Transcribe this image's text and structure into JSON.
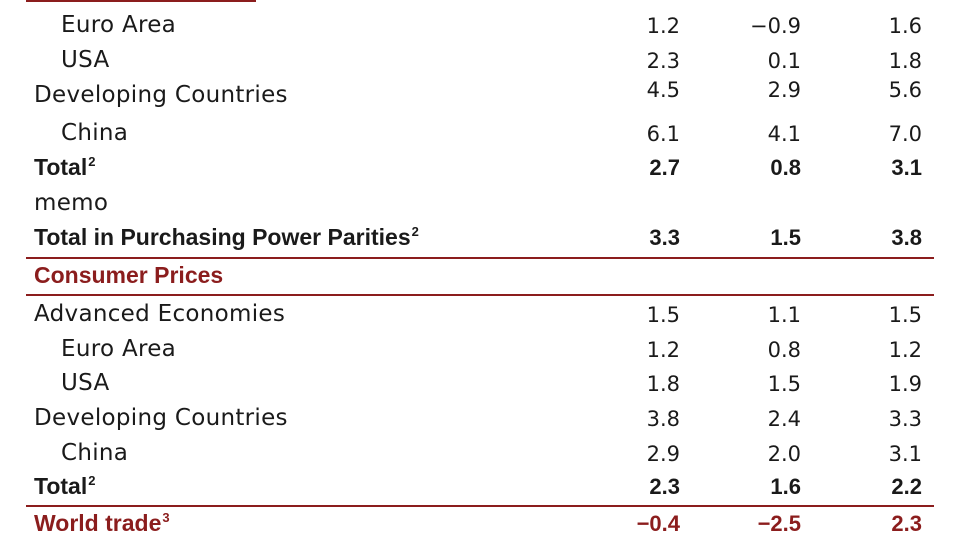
{
  "rows": [
    {
      "label": "Euro Area",
      "indent": true,
      "values": [
        "1.2",
        "-0.9",
        "1.6"
      ]
    },
    {
      "label": "USA",
      "indent": true,
      "values": [
        "2.3",
        "0.1",
        "1.8"
      ]
    },
    {
      "label": "Developing Countries",
      "values": [
        "4.5",
        "2.9",
        "5.6"
      ]
    },
    {
      "label": "China",
      "indent": true,
      "values": [
        "6.1",
        "4.1",
        "7.0"
      ]
    },
    {
      "label": "Total",
      "sup": "2",
      "bold": true,
      "values": [
        "2.7",
        "0.8",
        "3.1"
      ]
    },
    {
      "label": "memo",
      "values": [
        "",
        "",
        ""
      ]
    },
    {
      "label": "Total in Purchasing Power Parities",
      "sup": "2",
      "bold": true,
      "values": [
        "3.3",
        "1.5",
        "3.8"
      ]
    },
    {
      "label": "Consumer Prices",
      "bold": true,
      "red": true,
      "section": true,
      "values": [
        "",
        "",
        ""
      ]
    },
    {
      "label": "Advanced Economies",
      "values": [
        "1.5",
        "1.1",
        "1.5"
      ]
    },
    {
      "label": "Euro Area",
      "indent": true,
      "values": [
        "1.2",
        "0.8",
        "1.2"
      ]
    },
    {
      "label": "USA",
      "indent": true,
      "values": [
        "1.8",
        "1.5",
        "1.9"
      ]
    },
    {
      "label": "Developing Countries",
      "values": [
        "3.8",
        "2.4",
        "3.3"
      ]
    },
    {
      "label": "China",
      "indent": true,
      "values": [
        "2.9",
        "2.0",
        "3.1"
      ]
    },
    {
      "label": "Total",
      "sup": "2",
      "bold": true,
      "values": [
        "2.3",
        "1.6",
        "2.2"
      ]
    },
    {
      "label": "World trade",
      "sup": "3",
      "bold": true,
      "red": true,
      "values": [
        "-0.4",
        "-2.5",
        "2.3"
      ]
    }
  ],
  "colors": {
    "accent": "#8b1d1d",
    "text": "#1a1a1a"
  }
}
